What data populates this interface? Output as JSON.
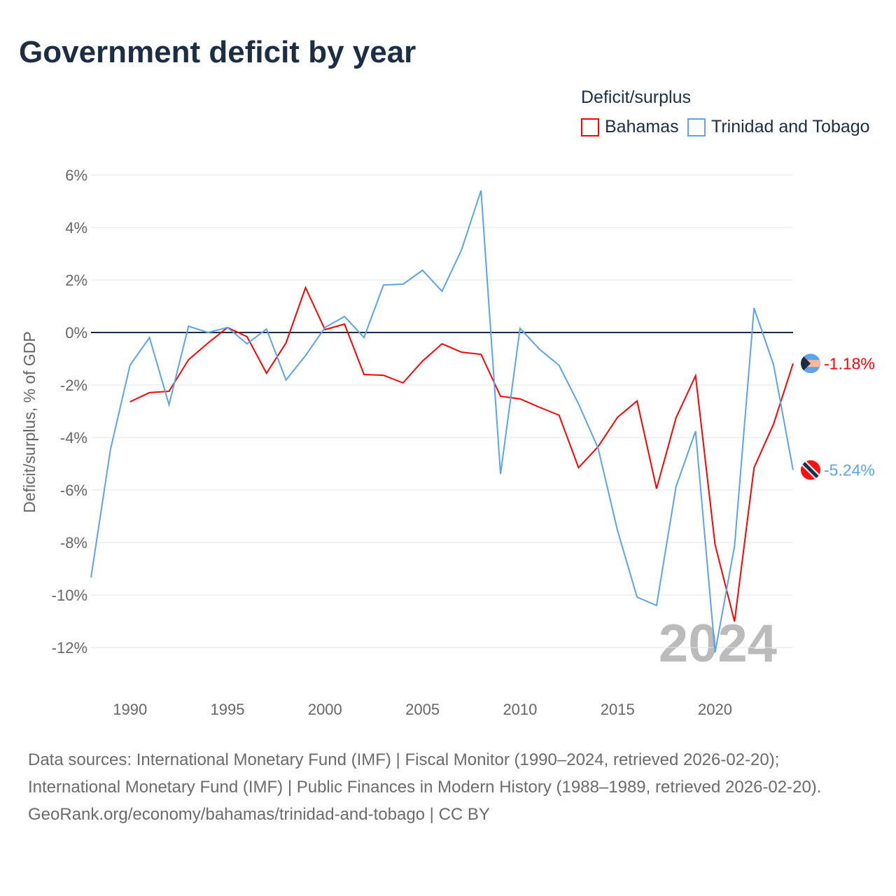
{
  "title": "Government deficit by year",
  "legend": {
    "title": "Deficit/surplus",
    "items": [
      {
        "label": "Bahamas",
        "color": "#ff0000"
      },
      {
        "label": "Trinidad and Tobago",
        "color": "#5ba3ea"
      }
    ]
  },
  "chart_data": {
    "type": "line",
    "ylabel": "Deficit/surplus, % of GDP",
    "xlim": [
      1988,
      2024
    ],
    "ylim": [
      -13,
      6.5
    ],
    "yticks": [
      6,
      4,
      2,
      0,
      -2,
      -4,
      -6,
      -8,
      -10,
      -12
    ],
    "ytick_labels": [
      "6%",
      "4%",
      "2%",
      "0%",
      "-2%",
      "-4%",
      "-6%",
      "-8%",
      "-10%",
      "-12%"
    ],
    "xticks": [
      1990,
      1995,
      2000,
      2005,
      2010,
      2015,
      2020
    ],
    "xtick_labels": [
      "1990",
      "1995",
      "2000",
      "2005",
      "2010",
      "2015",
      "2020"
    ],
    "year_watermark": "2024",
    "series": [
      {
        "name": "Bahamas",
        "color": "#ff0000",
        "end_label": "-1.18%",
        "start": 1990,
        "values": [
          -2.64,
          -2.29,
          -2.24,
          -1.04,
          -0.4,
          0.19,
          -0.16,
          -1.55,
          -0.4,
          1.71,
          0.11,
          0.32,
          -1.6,
          -1.63,
          -1.92,
          -1.09,
          -0.43,
          -0.75,
          -0.83,
          -2.43,
          -2.53,
          -2.85,
          -3.15,
          -5.15,
          -4.35,
          -3.23,
          -2.61,
          -5.95,
          -3.25,
          -1.65,
          -8.08,
          -11.01,
          -5.15,
          -3.49,
          -1.18
        ]
      },
      {
        "name": "Trinidad and Tobago",
        "color": "#5ba3ea",
        "end_label": "-5.24%",
        "start": 1988,
        "values": [
          -9.33,
          -4.45,
          -1.25,
          -0.19,
          -2.75,
          0.24,
          0,
          0.19,
          -0.43,
          0.13,
          -1.81,
          -0.88,
          0.19,
          0.61,
          -0.19,
          1.81,
          1.84,
          2.37,
          1.57,
          3.15,
          5.41,
          -5.39,
          0.16,
          -0.64,
          -1.25,
          -2.72,
          -4.4,
          -7.55,
          -10.08,
          -10.4,
          -5.87,
          -3.76,
          -12.19,
          -8.13,
          0.93,
          -1.23,
          -5.24
        ]
      }
    ]
  },
  "footer": {
    "sources": "Data sources: International Monetary Fund (IMF) | Fiscal Monitor (1990–2024, retrieved 2026-02-20); International Monetary Fund (IMF) | Public Finances in Modern History (1988–1989, retrieved 2026-02-20).",
    "link": "GeoRank.org/economy/bahamas/trinidad-and-tobago | CC BY"
  }
}
